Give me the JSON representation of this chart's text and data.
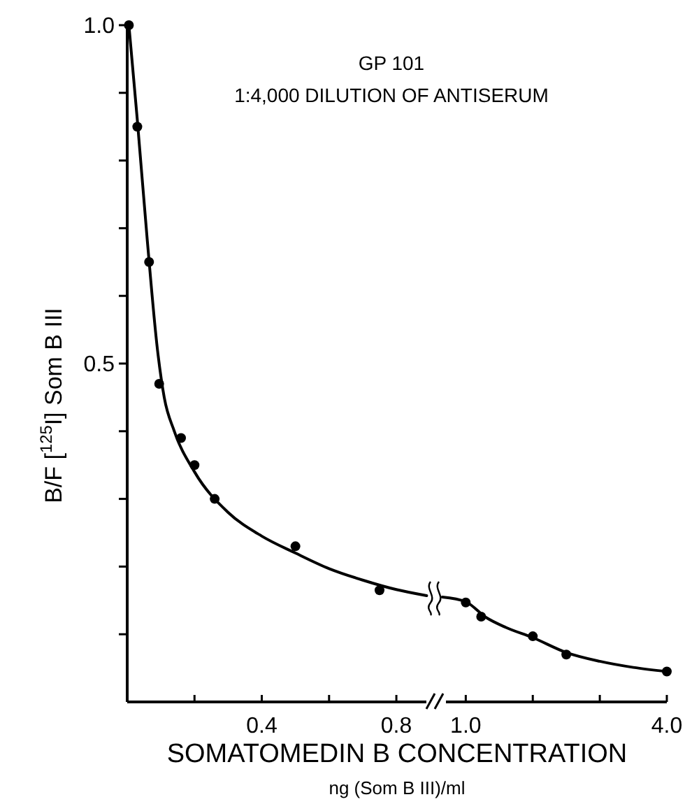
{
  "chart_data": [
    {
      "type": "scatter",
      "title": "GP 101",
      "subtitle": "1:4,000 DILUTION OF ANTISERUM",
      "xlabel": "SOMATOMEDIN B CONCENTRATION",
      "ylabel": "B/F [$^{125}$I] Som B III",
      "annotations": [
        "ng (Som B III)/ml"
      ],
      "xlim": [
        0,
        0.91
      ],
      "xticks": [
        {
          "value": 0.2,
          "label": null
        },
        0.4,
        {
          "value": 0.6,
          "label": null
        },
        0.8
      ],
      "ylim": [
        0,
        1.0
      ],
      "yticks": [
        {
          "value": 0.1,
          "label": null
        },
        {
          "value": 0.2,
          "label": null
        },
        {
          "value": 0.3,
          "label": null
        },
        {
          "value": 0.4,
          "label": null
        },
        0.5,
        {
          "value": 0.6,
          "label": null
        },
        {
          "value": 0.7,
          "label": null
        },
        {
          "value": 0.8,
          "label": null
        },
        {
          "value": 0.9,
          "label": null
        },
        {
          "value": 1.0,
          "label": "1.0"
        }
      ],
      "series": [
        {
          "marker": "circle",
          "color": "#000000",
          "x": [
            0.005,
            0.03,
            0.065,
            0.095,
            0.16,
            0.2,
            0.26,
            0.5,
            0.75
          ],
          "values": [
            1.0,
            0.85,
            0.65,
            0.47,
            0.39,
            0.35,
            0.3,
            0.23,
            0.165
          ]
        },
        {
          "type": "line",
          "marker": "none",
          "color": "#000000",
          "x": [
            0.005,
            0.03,
            0.06,
            0.09,
            0.11,
            0.14,
            0.2,
            0.3,
            0.4,
            0.5,
            0.6,
            0.7,
            0.8,
            0.89
          ],
          "values": [
            1.0,
            0.86,
            0.68,
            0.52,
            0.45,
            0.4,
            0.34,
            0.28,
            0.245,
            0.22,
            0.197,
            0.18,
            0.166,
            0.157
          ]
        }
      ]
    },
    {
      "type": "scatter",
      "tick_labels": "x",
      "xlim": [
        0.6,
        4.0
      ],
      "xticks": [
        {
          "value": 1.0,
          "label": "1.0"
        },
        {
          "value": 2.0,
          "label": null
        },
        {
          "value": 3.0,
          "label": null
        },
        {
          "value": 4.0,
          "label": "4.0"
        }
      ],
      "ylim": [
        0,
        1.0
      ],
      "series": [
        {
          "marker": "circle",
          "color": "#000000",
          "x": [
            1.0,
            1.23,
            2.0,
            2.5,
            4.0
          ],
          "values": [
            0.147,
            0.126,
            0.097,
            0.07,
            0.045
          ]
        },
        {
          "type": "line",
          "marker": "none",
          "color": "#000000",
          "x": [
            0.65,
            1.0,
            1.3,
            1.6,
            2.0,
            2.5,
            3.0,
            3.5,
            4.0
          ],
          "values": [
            0.155,
            0.148,
            0.125,
            0.11,
            0.095,
            0.073,
            0.06,
            0.051,
            0.045
          ]
        }
      ]
    }
  ]
}
